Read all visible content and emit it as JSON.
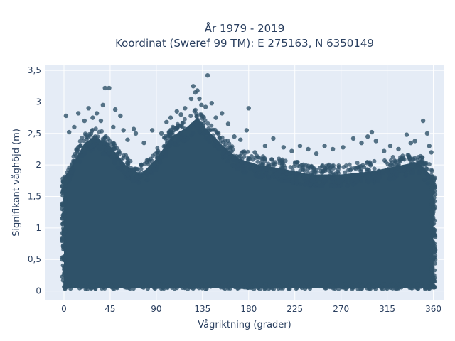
{
  "chart_data": {
    "type": "scatter",
    "title_lines": [
      "År 1979 - 2019",
      "Koordinat (Sweref 99 TM): E 275163, N 6350149"
    ],
    "xlabel": "Vågriktning (grader)",
    "ylabel": "Signifikant våghöjd (m)",
    "xlim": [
      -18,
      370
    ],
    "ylim": [
      -0.14,
      3.58
    ],
    "xticks": [
      0,
      45,
      90,
      135,
      180,
      225,
      270,
      315,
      360
    ],
    "xtick_labels": [
      "0",
      "45",
      "90",
      "135",
      "180",
      "225",
      "270",
      "315",
      "360"
    ],
    "yticks": [
      0,
      0.5,
      1,
      1.5,
      2,
      2.5,
      3,
      3.5
    ],
    "ytick_labels": [
      "0",
      "0,5",
      "1",
      "1,5",
      "2",
      "2,5",
      "3",
      "3,5"
    ],
    "grid": true,
    "background": "#e5ecf6",
    "marker_color": "#2f5269",
    "dense_band": {
      "x_range": [
        0,
        360
      ],
      "y_min": 0.05,
      "upper_envelope": [
        {
          "x": 0,
          "y": 1.8
        },
        {
          "x": 10,
          "y": 2.05
        },
        {
          "x": 20,
          "y": 2.35
        },
        {
          "x": 30,
          "y": 2.45
        },
        {
          "x": 45,
          "y": 2.3
        },
        {
          "x": 60,
          "y": 2.0
        },
        {
          "x": 75,
          "y": 1.85
        },
        {
          "x": 90,
          "y": 2.1
        },
        {
          "x": 105,
          "y": 2.45
        },
        {
          "x": 120,
          "y": 2.6
        },
        {
          "x": 130,
          "y": 2.75
        },
        {
          "x": 140,
          "y": 2.55
        },
        {
          "x": 155,
          "y": 2.3
        },
        {
          "x": 170,
          "y": 2.1
        },
        {
          "x": 190,
          "y": 2.0
        },
        {
          "x": 210,
          "y": 1.95
        },
        {
          "x": 240,
          "y": 1.85
        },
        {
          "x": 270,
          "y": 1.85
        },
        {
          "x": 300,
          "y": 1.9
        },
        {
          "x": 330,
          "y": 2.0
        },
        {
          "x": 345,
          "y": 2.05
        },
        {
          "x": 360,
          "y": 1.8
        }
      ]
    },
    "outliers": [
      {
        "x": 2,
        "y": 2.78
      },
      {
        "x": 5,
        "y": 2.52
      },
      {
        "x": 10,
        "y": 2.6
      },
      {
        "x": 14,
        "y": 2.82
      },
      {
        "x": 20,
        "y": 2.7
      },
      {
        "x": 24,
        "y": 2.9
      },
      {
        "x": 28,
        "y": 2.75
      },
      {
        "x": 32,
        "y": 2.82
      },
      {
        "x": 36,
        "y": 2.7
      },
      {
        "x": 38,
        "y": 2.95
      },
      {
        "x": 40,
        "y": 3.22
      },
      {
        "x": 44,
        "y": 3.22
      },
      {
        "x": 48,
        "y": 2.6
      },
      {
        "x": 50,
        "y": 2.88
      },
      {
        "x": 55,
        "y": 2.78
      },
      {
        "x": 58,
        "y": 2.55
      },
      {
        "x": 62,
        "y": 2.4
      },
      {
        "x": 68,
        "y": 2.57
      },
      {
        "x": 70,
        "y": 2.5
      },
      {
        "x": 78,
        "y": 2.35
      },
      {
        "x": 86,
        "y": 2.55
      },
      {
        "x": 95,
        "y": 2.5
      },
      {
        "x": 100,
        "y": 2.68
      },
      {
        "x": 104,
        "y": 2.75
      },
      {
        "x": 110,
        "y": 2.85
      },
      {
        "x": 114,
        "y": 2.8
      },
      {
        "x": 118,
        "y": 2.9
      },
      {
        "x": 124,
        "y": 3.05
      },
      {
        "x": 126,
        "y": 3.25
      },
      {
        "x": 128,
        "y": 3.15
      },
      {
        "x": 130,
        "y": 3.18
      },
      {
        "x": 132,
        "y": 3.05
      },
      {
        "x": 134,
        "y": 2.95
      },
      {
        "x": 138,
        "y": 2.92
      },
      {
        "x": 140,
        "y": 3.42
      },
      {
        "x": 144,
        "y": 2.98
      },
      {
        "x": 148,
        "y": 2.75
      },
      {
        "x": 154,
        "y": 2.82
      },
      {
        "x": 160,
        "y": 2.65
      },
      {
        "x": 166,
        "y": 2.45
      },
      {
        "x": 172,
        "y": 2.4
      },
      {
        "x": 178,
        "y": 2.55
      },
      {
        "x": 180,
        "y": 2.9
      },
      {
        "x": 186,
        "y": 2.2
      },
      {
        "x": 196,
        "y": 2.3
      },
      {
        "x": 204,
        "y": 2.42
      },
      {
        "x": 214,
        "y": 2.28
      },
      {
        "x": 222,
        "y": 2.22
      },
      {
        "x": 230,
        "y": 2.3
      },
      {
        "x": 238,
        "y": 2.25
      },
      {
        "x": 246,
        "y": 2.18
      },
      {
        "x": 254,
        "y": 2.3
      },
      {
        "x": 262,
        "y": 2.25
      },
      {
        "x": 272,
        "y": 2.28
      },
      {
        "x": 282,
        "y": 2.42
      },
      {
        "x": 290,
        "y": 2.35
      },
      {
        "x": 296,
        "y": 2.45
      },
      {
        "x": 300,
        "y": 2.52
      },
      {
        "x": 304,
        "y": 2.38
      },
      {
        "x": 312,
        "y": 2.22
      },
      {
        "x": 318,
        "y": 2.3
      },
      {
        "x": 326,
        "y": 2.25
      },
      {
        "x": 334,
        "y": 2.48
      },
      {
        "x": 338,
        "y": 2.35
      },
      {
        "x": 342,
        "y": 2.38
      },
      {
        "x": 350,
        "y": 2.7
      },
      {
        "x": 354,
        "y": 2.5
      },
      {
        "x": 356,
        "y": 2.3
      },
      {
        "x": 358,
        "y": 2.2
      }
    ]
  }
}
